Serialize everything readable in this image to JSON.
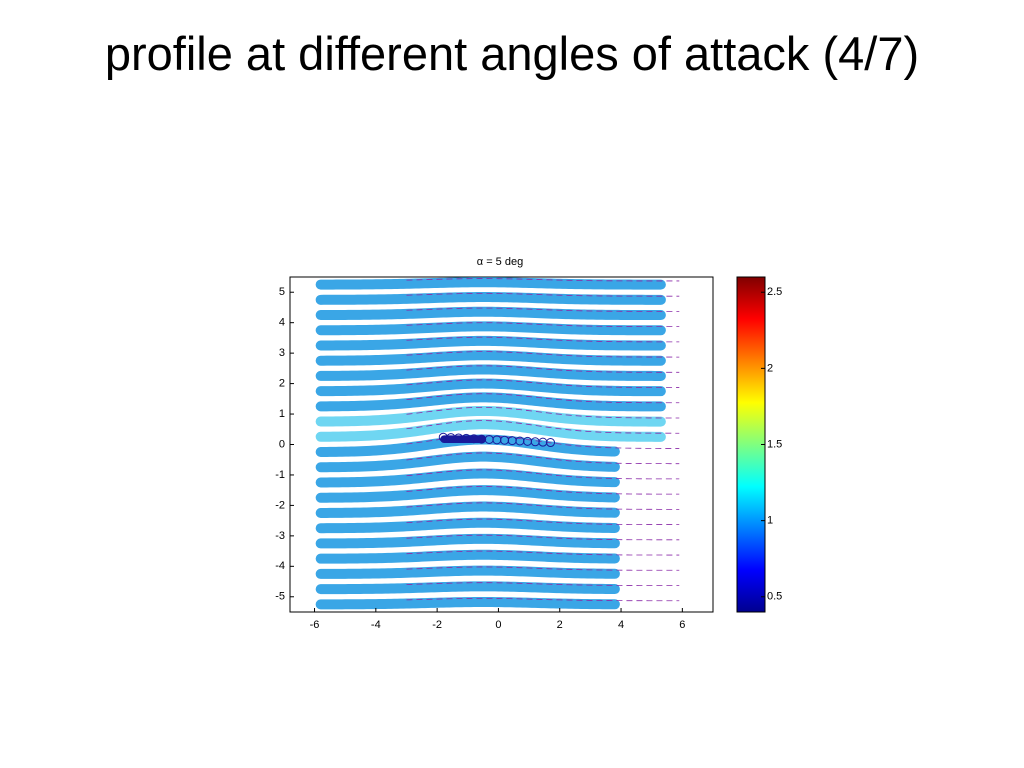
{
  "slide_title": "profile at different angles of attack (4/7)",
  "chart_data": {
    "type": "streamline",
    "title": "α = 5 deg",
    "xlim": [
      -6.8,
      7
    ],
    "xticks": [
      -6,
      -4,
      -2,
      0,
      2,
      4,
      6
    ],
    "ylim": [
      -5.5,
      5.5
    ],
    "yticks": [
      -5,
      -4,
      -3,
      -2,
      -1,
      0,
      1,
      2,
      3,
      4,
      5
    ],
    "colorbar": {
      "lim": [
        0.4,
        2.6
      ],
      "ticks": [
        0.5,
        1,
        1.5,
        2,
        2.5
      ]
    }
  }
}
